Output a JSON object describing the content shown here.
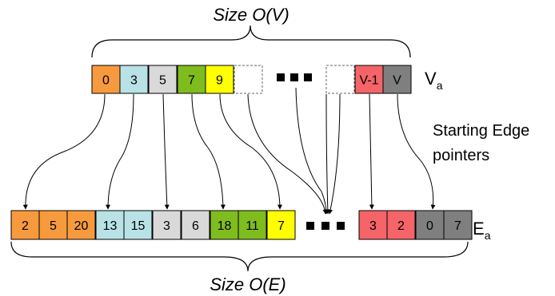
{
  "title_top": "Size O(V)",
  "title_bottom": "Size O(E)",
  "va_label": {
    "main": "V",
    "sub": "a"
  },
  "ea_label": {
    "main": "E",
    "sub": "a"
  },
  "note": {
    "line1": "Starting Edge",
    "line2": "pointers"
  },
  "colors": {
    "orange": "#f79a3e",
    "lightblue": "#b8e2e6",
    "lightgray": "#d9d9d9",
    "green": "#7fbc1e",
    "yellow": "#ffff00",
    "salmon": "#f46468",
    "darkgray": "#7f7f7f",
    "white": "#ffffff"
  },
  "va_cells": [
    {
      "text": "0",
      "color": "orange"
    },
    {
      "text": "3",
      "color": "lightblue"
    },
    {
      "text": "5",
      "color": "lightgray"
    },
    {
      "text": "7",
      "color": "green"
    },
    {
      "text": "9",
      "color": "yellow"
    },
    {
      "text": "",
      "color": "white",
      "dashed": true
    },
    {
      "text": "",
      "color": "white",
      "dashed": true
    },
    {
      "text": "V-1",
      "color": "salmon"
    },
    {
      "text": "V",
      "color": "darkgray"
    }
  ],
  "ea_cells_left": [
    {
      "text": "2",
      "color": "orange"
    },
    {
      "text": "5",
      "color": "orange"
    },
    {
      "text": "20",
      "color": "orange"
    },
    {
      "text": "13",
      "color": "lightblue"
    },
    {
      "text": "15",
      "color": "lightblue"
    },
    {
      "text": "3",
      "color": "lightgray"
    },
    {
      "text": "6",
      "color": "lightgray"
    },
    {
      "text": "18",
      "color": "green"
    },
    {
      "text": "11",
      "color": "green"
    },
    {
      "text": "7",
      "color": "yellow"
    }
  ],
  "ea_cells_right": [
    {
      "text": "3",
      "color": "salmon"
    },
    {
      "text": "2",
      "color": "salmon"
    },
    {
      "text": "0",
      "color": "darkgray"
    },
    {
      "text": "7",
      "color": "darkgray"
    }
  ]
}
